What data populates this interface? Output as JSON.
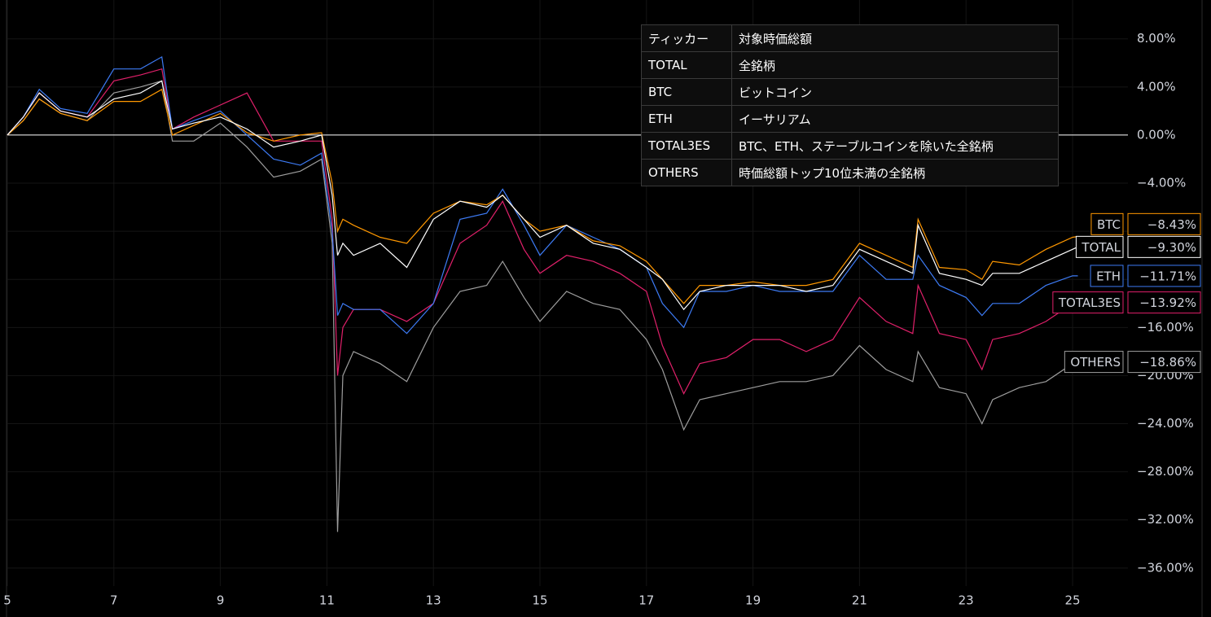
{
  "chart_data": {
    "type": "line",
    "x": [
      5,
      5.3,
      5.6,
      6,
      6.5,
      7,
      7.5,
      7.9,
      8.1,
      8.5,
      9,
      9.5,
      10,
      10.5,
      10.9,
      11.1,
      11.2,
      11.3,
      11.5,
      12,
      12.5,
      13,
      13.5,
      14,
      14.3,
      14.7,
      15,
      15.5,
      16,
      16.5,
      17,
      17.3,
      17.7,
      18,
      18.5,
      19,
      19.5,
      20,
      20.5,
      21,
      21.5,
      22,
      22.1,
      22.5,
      23,
      23.3,
      23.5,
      24,
      24.5,
      25,
      25.1
    ],
    "series": [
      {
        "name": "TOTAL",
        "color": "#ffffff",
        "last_label": "−9.30%",
        "values": [
          0,
          1.5,
          3.5,
          2,
          1.5,
          3,
          3.5,
          4.5,
          0.5,
          1,
          1.5,
          0.5,
          -1,
          -0.5,
          0,
          -5,
          -10,
          -9,
          -10,
          -9,
          -11,
          -7,
          -5.5,
          -6,
          -5,
          -7,
          -8.5,
          -7.5,
          -9,
          -9.5,
          -11,
          -12,
          -14.5,
          -13,
          -12.5,
          -12.5,
          -12.5,
          -13,
          -12.5,
          -9.5,
          -10.5,
          -11.5,
          -7.5,
          -11.5,
          -12,
          -12.5,
          -11.5,
          -11.5,
          -10.5,
          -9.5,
          -9.3
        ]
      },
      {
        "name": "BTC",
        "color": "#ff9800",
        "last_label": "−8.43%",
        "values": [
          0,
          1.2,
          3,
          1.8,
          1.2,
          2.8,
          2.8,
          3.8,
          0,
          0.8,
          1.8,
          0.2,
          -0.5,
          0,
          0.2,
          -4,
          -8,
          -7,
          -7.5,
          -8.5,
          -9,
          -6.5,
          -5.5,
          -5.8,
          -5,
          -7,
          -8,
          -7.5,
          -8.8,
          -9.2,
          -10.5,
          -12,
          -14,
          -12.5,
          -12.5,
          -12.2,
          -12.5,
          -12.5,
          -12,
          -9,
          -10,
          -11,
          -7,
          -11,
          -11.2,
          -12,
          -10.5,
          -10.8,
          -9.5,
          -8.5,
          -8.43
        ]
      },
      {
        "name": "ETH",
        "color": "#3d7bf5",
        "last_label": "−11.71%",
        "values": [
          0,
          1.5,
          3.8,
          2.2,
          1.8,
          5.5,
          5.5,
          6.5,
          0.5,
          1.2,
          2,
          0,
          -2,
          -2.5,
          -1.5,
          -8,
          -15,
          -14,
          -14.5,
          -14.5,
          -16.5,
          -14,
          -7,
          -6.5,
          -4.5,
          -7.5,
          -10,
          -7.5,
          -8.5,
          -9.5,
          -11,
          -14,
          -16,
          -13,
          -13,
          -12.5,
          -13,
          -13,
          -13,
          -10,
          -12,
          -12,
          -10,
          -12.5,
          -13.5,
          -15,
          -14,
          -14,
          -12.5,
          -11.7,
          -11.71
        ]
      },
      {
        "name": "TOTAL3ES",
        "color": "#e0206a",
        "last_label": "−13.92%",
        "values": [
          0,
          1.5,
          3.5,
          2,
          1.5,
          4.5,
          5,
          5.5,
          0.5,
          1.5,
          2.5,
          3.5,
          -0.5,
          -0.5,
          -0.5,
          -7,
          -20,
          -16,
          -14.5,
          -14.5,
          -15.5,
          -14,
          -9,
          -7.5,
          -5.5,
          -9.5,
          -11.5,
          -10,
          -10.5,
          -11.5,
          -13,
          -17.5,
          -21.5,
          -19,
          -18.5,
          -17,
          -17,
          -18,
          -17,
          -13.5,
          -15.5,
          -16.5,
          -12.5,
          -16.5,
          -17,
          -19.5,
          -17,
          -16.5,
          -15.5,
          -14,
          -13.92
        ]
      },
      {
        "name": "OTHERS",
        "color": "#9e9e9e",
        "last_label": "−18.86%",
        "values": [
          0,
          1.2,
          3,
          1.8,
          1.2,
          3.5,
          4,
          4.5,
          -0.5,
          -0.5,
          1,
          -1,
          -3.5,
          -3,
          -2,
          -9,
          -33,
          -20,
          -18,
          -19,
          -20.5,
          -16,
          -13,
          -12.5,
          -10.5,
          -13.5,
          -15.5,
          -13,
          -14,
          -14.5,
          -17,
          -19.5,
          -24.5,
          -22,
          -21.5,
          -21,
          -20.5,
          -20.5,
          -20,
          -17.5,
          -19.5,
          -20.5,
          -18,
          -21,
          -21.5,
          -24,
          -22,
          -21,
          -20.5,
          -19,
          -18.86
        ]
      }
    ],
    "xlim": [
      5,
      26.04
    ],
    "xticks": [
      5,
      7,
      9,
      11,
      13,
      15,
      17,
      19,
      21,
      23,
      25
    ],
    "ylim": [
      -37.5,
      11.23
    ],
    "yticks": [
      {
        "value": 8,
        "label": "8.00%"
      },
      {
        "value": 4,
        "label": "4.00%"
      },
      {
        "value": 0,
        "label": "0.00%"
      },
      {
        "value": -4,
        "label": "−4.00%"
      },
      {
        "value": -8,
        "label": "−8.00%"
      },
      {
        "value": -12,
        "label": "−12.00%"
      },
      {
        "value": -16,
        "label": "−16.00%"
      },
      {
        "value": -20,
        "label": "−20.00%"
      },
      {
        "value": -24,
        "label": "−24.00%"
      },
      {
        "value": -28,
        "label": "−28.00%"
      },
      {
        "value": -32,
        "label": "−32.00%"
      },
      {
        "value": -36,
        "label": "−36.00%"
      }
    ],
    "grid": true,
    "legend_table": {
      "header": [
        "ティッカー",
        "対象時価総額"
      ],
      "rows": [
        [
          "TOTAL",
          "全銘柄"
        ],
        [
          "BTC",
          "ビットコイン"
        ],
        [
          "ETH",
          "イーサリアム"
        ],
        [
          "TOTAL3ES",
          "BTC、ETH、ステーブルコインを除いた全銘柄"
        ],
        [
          "OTHERS",
          "時価総額トップ10位未満の全銘柄"
        ]
      ]
    }
  }
}
